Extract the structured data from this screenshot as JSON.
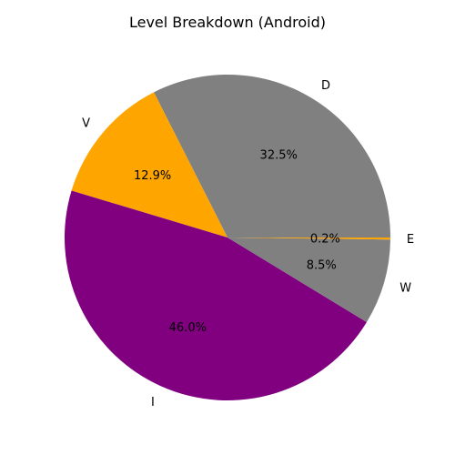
{
  "chart_data": {
    "type": "pie",
    "title": "Level Breakdown (Android)",
    "slices": [
      {
        "label": "D",
        "value": 32.5,
        "pct_label": "32.5%",
        "color": "#808080"
      },
      {
        "label": "V",
        "value": 12.9,
        "pct_label": "12.9%",
        "color": "#ffa500"
      },
      {
        "label": "I",
        "value": 46.0,
        "pct_label": "46.0%",
        "color": "#800080"
      },
      {
        "label": "W",
        "value": 8.5,
        "pct_label": "8.5%",
        "color": "#808080"
      },
      {
        "label": "E",
        "value": 0.2,
        "pct_label": "0.2%",
        "color": "#ffa500"
      }
    ],
    "start_angle_deg": 0,
    "direction": "counterclockwise",
    "legend": "none"
  }
}
